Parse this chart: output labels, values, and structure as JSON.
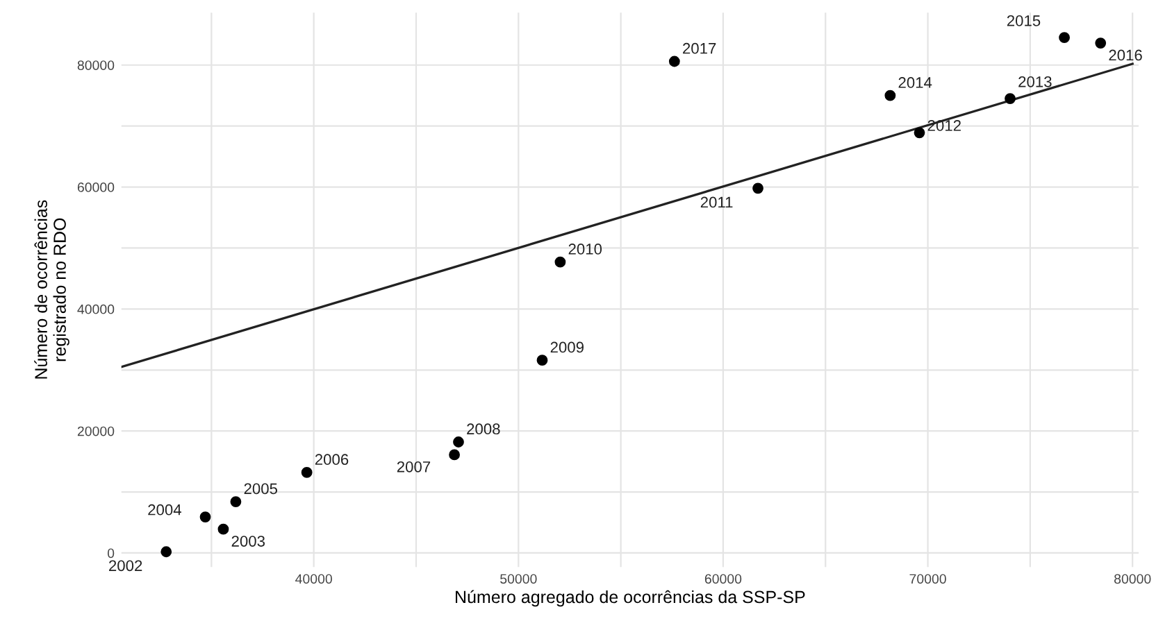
{
  "chart_data": {
    "type": "scatter",
    "xlabel": "Número agregado de ocorrências da SSP-SP",
    "ylabel": "Número de ocorrências\nregistrado no RDO",
    "x": [
      32790,
      35580,
      34700,
      36190,
      39660,
      46870,
      47070,
      51160,
      52040,
      61700,
      69590,
      74020,
      68160,
      76670,
      78440,
      57620
    ],
    "series": [
      {
        "color": "#000000",
        "marker": "circle",
        "values": [
          200,
          3900,
          5900,
          8400,
          13200,
          16100,
          18200,
          31600,
          47700,
          59800,
          68900,
          74500,
          75000,
          84500,
          83600,
          80600
        ]
      },
      {
        "type": "line",
        "color": "#222222",
        "line_style": "solid",
        "marker": "none",
        "x": [
          30600,
          80000
        ],
        "values": [
          30500,
          80200
        ]
      }
    ],
    "annotations": [
      {
        "text": "2002",
        "x": 32790,
        "y": 200
      },
      {
        "text": "2003",
        "x": 35580,
        "y": 3900
      },
      {
        "text": "2004",
        "x": 34700,
        "y": 5900
      },
      {
        "text": "2005",
        "x": 36190,
        "y": 8400
      },
      {
        "text": "2006",
        "x": 39660,
        "y": 13200
      },
      {
        "text": "2007",
        "x": 46870,
        "y": 16100
      },
      {
        "text": "2008",
        "x": 47070,
        "y": 18200
      },
      {
        "text": "2009",
        "x": 51160,
        "y": 31600
      },
      {
        "text": "2010",
        "x": 52040,
        "y": 47700
      },
      {
        "text": "2011",
        "x": 61700,
        "y": 59800
      },
      {
        "text": "2012",
        "x": 69590,
        "y": 68900
      },
      {
        "text": "2013",
        "x": 74020,
        "y": 74500
      },
      {
        "text": "2014",
        "x": 68160,
        "y": 75000
      },
      {
        "text": "2015",
        "x": 76670,
        "y": 84500
      },
      {
        "text": "2016",
        "x": 78440,
        "y": 83600
      },
      {
        "text": "2017",
        "x": 57620,
        "y": 80600
      }
    ],
    "xlim": [
      30600,
      80300
    ],
    "ylim": [
      -2300,
      88600
    ],
    "xticks": [
      40000,
      50000,
      60000,
      70000,
      80000
    ],
    "yticks": [
      0,
      20000,
      40000,
      60000,
      80000
    ],
    "grid": true
  }
}
